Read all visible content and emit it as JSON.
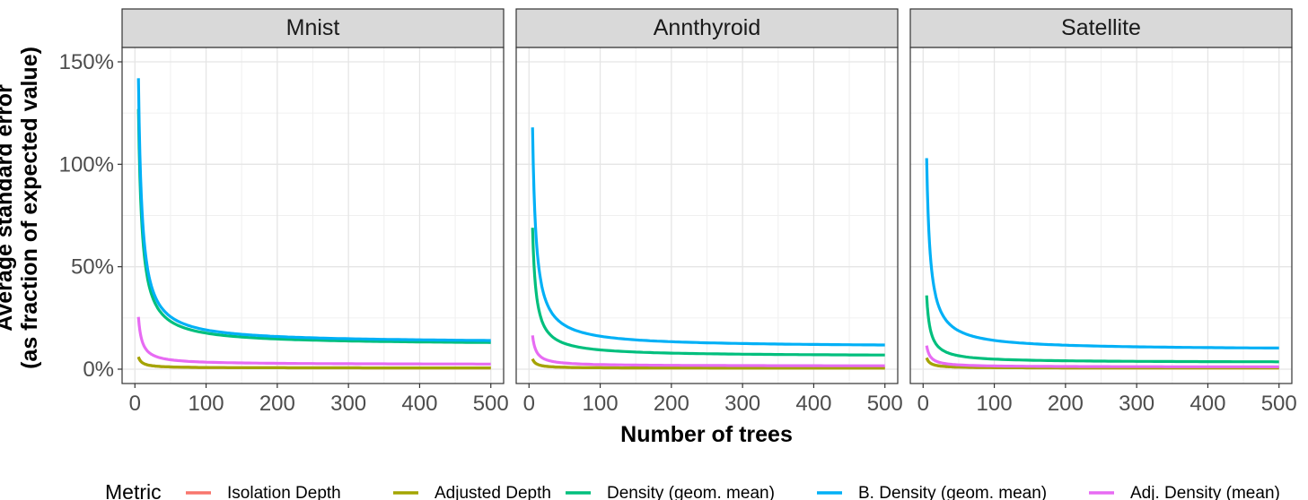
{
  "chart_data": {
    "type": "line",
    "ylabel_line1": "Average standard error",
    "ylabel_line2": "(as fraction of expected value)",
    "xlabel": "Number of trees",
    "xlim": [
      -18,
      518
    ],
    "ylim": [
      -7,
      157
    ],
    "x_ticks": [
      0,
      100,
      200,
      300,
      400,
      500
    ],
    "y_ticks": [
      0,
      50,
      100,
      150
    ],
    "y_tick_labels": [
      "0%",
      "50%",
      "100%",
      "150%"
    ],
    "grid": true,
    "legend": {
      "position": "bottom",
      "title": "Metric",
      "entries": [
        {
          "name": "Isolation Depth",
          "color": "#F8766D"
        },
        {
          "name": "Adjusted Depth",
          "color": "#A3A500"
        },
        {
          "name": "Density (geom. mean)",
          "color": "#00BF7D"
        },
        {
          "name": "B. Density (geom. mean)",
          "color": "#00B0F6"
        },
        {
          "name": "Adj. Density (mean)",
          "color": "#E76BF3"
        }
      ]
    },
    "panels": [
      {
        "title": "Mnist",
        "series": [
          {
            "name": "Isolation Depth",
            "color": "#F8766D",
            "y5": 6,
            "y500": 0.6
          },
          {
            "name": "Adjusted Depth",
            "color": "#A3A500",
            "y5": 6,
            "y500": 0.6
          },
          {
            "name": "Density (geom. mean)",
            "color": "#00BF7D",
            "y5": 127,
            "y500": 13
          },
          {
            "name": "B. Density (geom. mean)",
            "color": "#00B0F6",
            "y5": 142,
            "y500": 14
          },
          {
            "name": "Adj. Density (mean)",
            "color": "#E76BF3",
            "y5": 25.5,
            "y500": 2.5
          }
        ]
      },
      {
        "title": "Annthyroid",
        "series": [
          {
            "name": "Isolation Depth",
            "color": "#F8766D",
            "y5": 5,
            "y500": 0.5
          },
          {
            "name": "Adjusted Depth",
            "color": "#A3A500",
            "y5": 5,
            "y500": 0.5
          },
          {
            "name": "Density (geom. mean)",
            "color": "#00BF7D",
            "y5": 69,
            "y500": 6.9
          },
          {
            "name": "B. Density (geom. mean)",
            "color": "#00B0F6",
            "y5": 118,
            "y500": 11.8
          },
          {
            "name": "Adj. Density (mean)",
            "color": "#E76BF3",
            "y5": 16.5,
            "y500": 1.65
          }
        ]
      },
      {
        "title": "Satellite",
        "series": [
          {
            "name": "Isolation Depth",
            "color": "#F8766D",
            "y5": 5.5,
            "y500": 0.55
          },
          {
            "name": "Adjusted Depth",
            "color": "#A3A500",
            "y5": 5.5,
            "y500": 0.55
          },
          {
            "name": "Density (geom. mean)",
            "color": "#00BF7D",
            "y5": 36,
            "y500": 3.6
          },
          {
            "name": "B. Density (geom. mean)",
            "color": "#00B0F6",
            "y5": 103,
            "y500": 10.3
          },
          {
            "name": "Adj. Density (mean)",
            "color": "#E76BF3",
            "y5": 11.5,
            "y500": 1.15
          }
        ]
      }
    ]
  }
}
